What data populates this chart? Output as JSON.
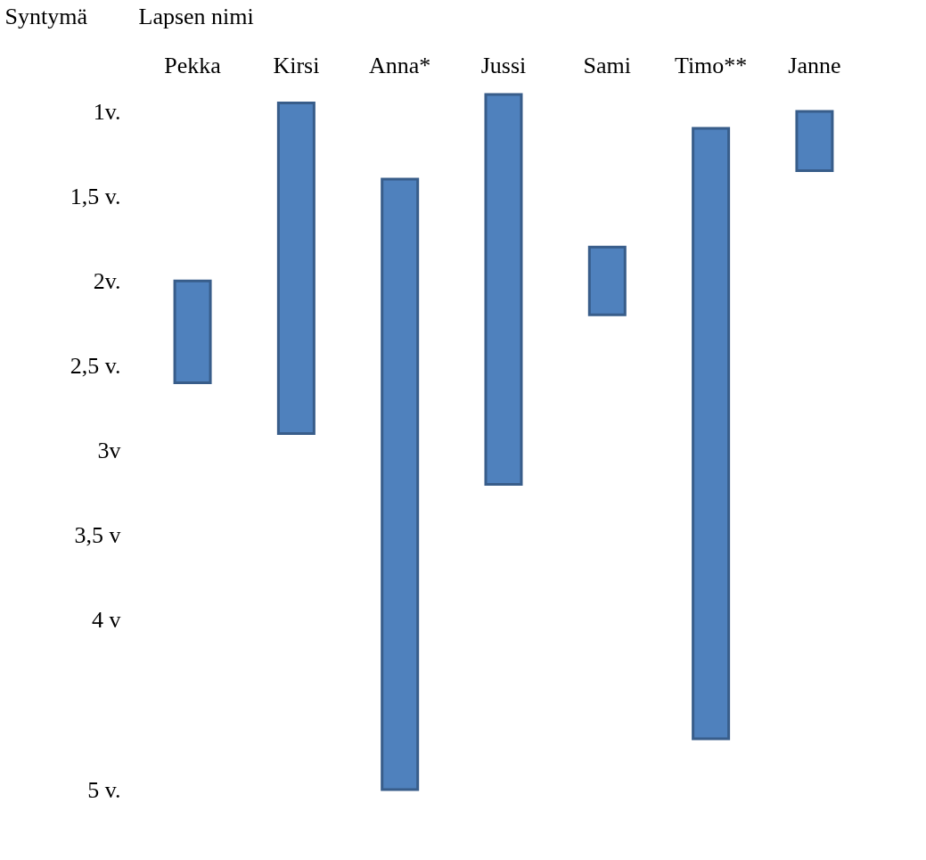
{
  "chart_data": {
    "type": "bar",
    "xlabel": "Lapsen nimi",
    "ylabel": "Syntymä",
    "categories": [
      "Pekka",
      "Kirsi",
      "Anna*",
      "Jussi",
      "Sami",
      "Timo**",
      "Janne"
    ],
    "base": [
      2,
      0.95,
      1.4,
      0.9,
      1.8,
      1.1,
      1
    ],
    "values": [
      0.6,
      1.95,
      3.6,
      2.3,
      0.4,
      3.6,
      0.35
    ],
    "color": "#4f81bd",
    "ylim": [
      5,
      0.9
    ],
    "yticks": [
      {
        "value": 1,
        "label": "1v."
      },
      {
        "value": 1.5,
        "label": "1,5 v."
      },
      {
        "value": 2,
        "label": "2v."
      },
      {
        "value": 2.5,
        "label": "2,5 v."
      },
      {
        "value": 3,
        "label": "3v"
      },
      {
        "value": 3.5,
        "label": "3,5 v"
      },
      {
        "value": 4,
        "label": "4 v"
      },
      {
        "value": 5,
        "label": "5 v."
      }
    ],
    "grid": false
  }
}
